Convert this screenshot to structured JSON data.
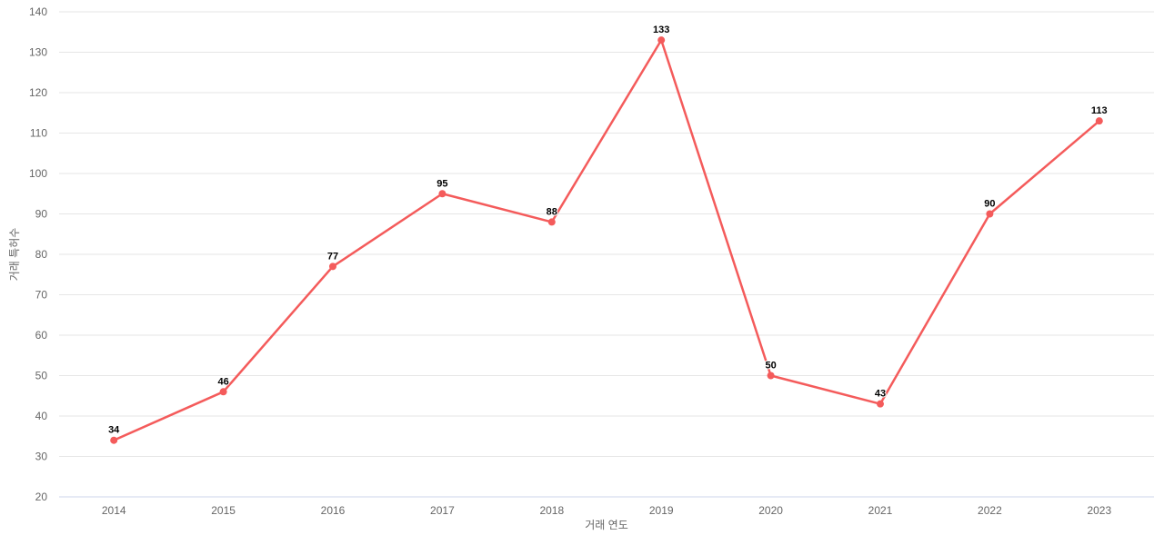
{
  "chart_data": {
    "type": "line",
    "title": "",
    "categories": [
      "2014",
      "2015",
      "2016",
      "2017",
      "2018",
      "2019",
      "2020",
      "2021",
      "2022",
      "2023"
    ],
    "values": [
      34,
      46,
      77,
      95,
      88,
      133,
      50,
      43,
      90,
      113
    ],
    "xlabel": "거래 연도",
    "ylabel": "거래 특허수",
    "ylim": [
      20,
      140
    ],
    "y_ticks": [
      20,
      30,
      40,
      50,
      60,
      70,
      80,
      90,
      100,
      110,
      120,
      130,
      140
    ],
    "grid": true,
    "legend": false,
    "data_labels_visible": true,
    "colors": {
      "series_line": "#f45b5b",
      "marker_fill": "#f45b5b",
      "gridline": "#e6e6e6",
      "axis_line": "#ccd6eb",
      "tick_label": "#666666",
      "axis_title": "#666666",
      "data_label": "#000000",
      "background": "#ffffff"
    }
  }
}
